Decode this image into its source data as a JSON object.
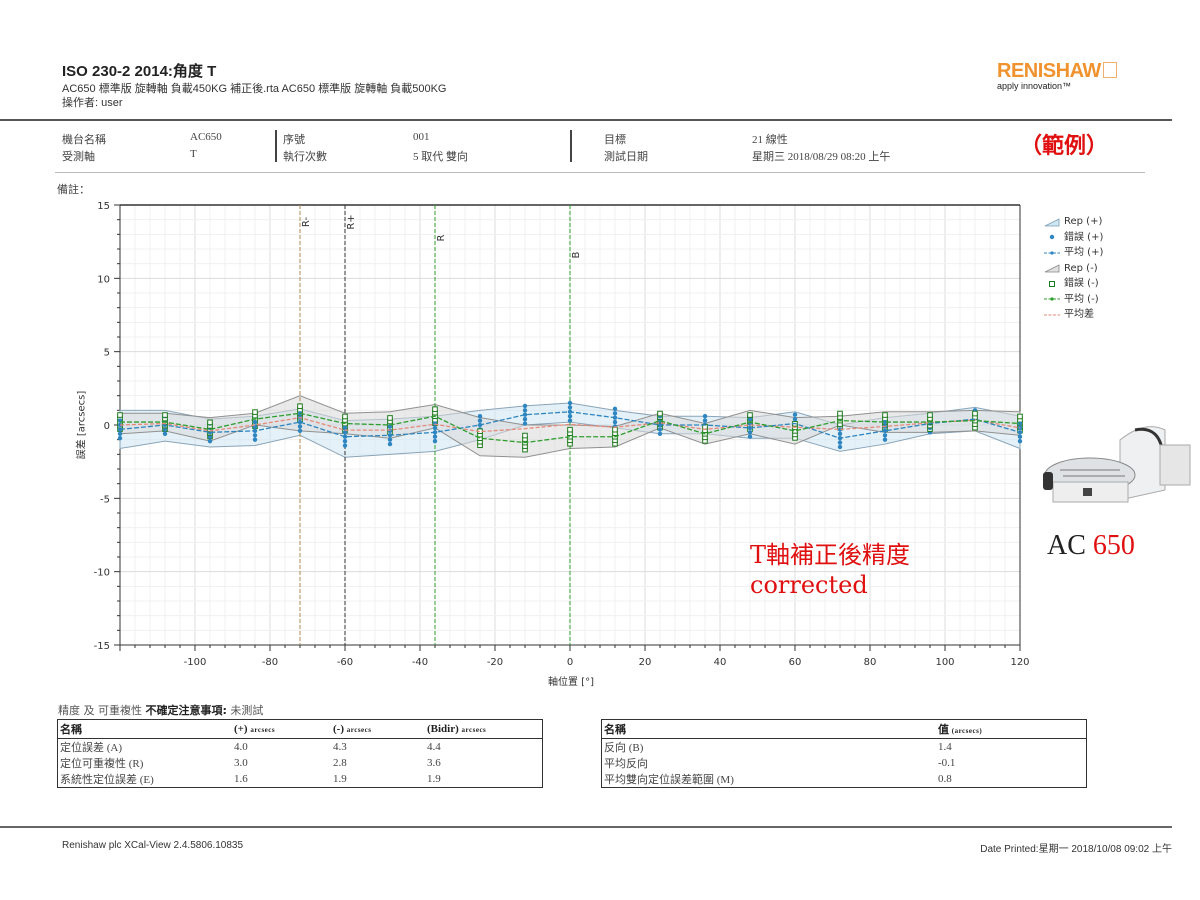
{
  "header": {
    "title": "ISO 230-2 2014:角度 T",
    "file_line": "AC650 標準版 旋轉軸 負載450KG 補正後.rta AC650 標準版 旋轉軸 負載500KG",
    "operator": "操作者: user",
    "logo": {
      "brand": "RENISHAW",
      "tagline": "apply innovation™",
      "brand_color": "#f0922e"
    }
  },
  "info": {
    "machine_label": "機台名稱",
    "machine_value": "AC650",
    "axis_label": "受測軸",
    "axis_value": "T",
    "serial_label": "序號",
    "serial_value": "001",
    "runs_label": "執行次數",
    "runs_value": "5 取代 雙向",
    "target_label": "目標",
    "target_value": "21 線性",
    "date_label": "測試日期",
    "date_value": "星期三 2018/08/29 08:20 上午",
    "example_mark": "（範例）",
    "notes_label": "備註："
  },
  "legend": [
    {
      "label": "Rep (+)",
      "icon": "band-icon"
    },
    {
      "label": "錯誤 (+)",
      "icon": "dot-icon"
    },
    {
      "label": "平均 (+)",
      "icon": "line-dot-icon"
    },
    {
      "label": "Rep (-)",
      "icon": "band-icon"
    },
    {
      "label": "錯誤 (-)",
      "icon": "square-icon"
    },
    {
      "label": "平均 (-)",
      "icon": "line-dot-icon"
    },
    {
      "label": "平均差",
      "icon": "line-icon"
    }
  ],
  "annotation": {
    "line1": "T軸補正後精度",
    "line2": "corrected"
  },
  "product": {
    "prefix": "AC ",
    "model": "650"
  },
  "chart_data": {
    "type": "line",
    "title": "",
    "xlabel": "軸位置 [°]",
    "ylabel": "誤差 [arcsecs]",
    "xlim": [
      -120,
      120
    ],
    "ylim": [
      -15,
      15
    ],
    "xticks": [
      -100,
      -80,
      -60,
      -40,
      -20,
      0,
      20,
      40,
      60,
      80,
      100,
      120
    ],
    "yticks": [
      15,
      10,
      5,
      0,
      -5,
      -10,
      -15
    ],
    "grid": true,
    "legend_position": "right",
    "x": [
      -120,
      -108,
      -96,
      -84,
      -72,
      -60,
      -48,
      -36,
      -24,
      -12,
      0,
      12,
      24,
      36,
      48,
      60,
      72,
      84,
      96,
      108,
      120
    ],
    "series": [
      {
        "name": "平均 (+)",
        "color": "#2e86c1",
        "values": [
          -0.3,
          0.0,
          -0.5,
          -0.4,
          0.2,
          -0.8,
          -0.7,
          -0.5,
          0.0,
          0.7,
          0.9,
          0.5,
          0.0,
          0.0,
          -0.2,
          0.1,
          -0.9,
          -0.4,
          0.1,
          0.4,
          -0.5
        ]
      },
      {
        "name": "平均 (-)",
        "color": "#2e9e2e",
        "values": [
          0.2,
          0.2,
          -0.3,
          0.4,
          0.8,
          0.1,
          0.0,
          0.6,
          -0.9,
          -1.2,
          -0.8,
          -0.8,
          0.3,
          -0.6,
          0.2,
          -0.4,
          0.3,
          0.2,
          0.2,
          0.3,
          0.1
        ]
      },
      {
        "name": "平均差",
        "color": "#e88a7a",
        "values": [
          0.0,
          0.1,
          -0.4,
          0.0,
          0.5,
          -0.35,
          -0.35,
          0.05,
          -0.45,
          -0.25,
          0.05,
          -0.15,
          0.15,
          -0.3,
          0.0,
          -0.15,
          -0.3,
          -0.1,
          0.15,
          0.35,
          -0.2
        ]
      },
      {
        "name": "Rep (+) upper",
        "values": [
          1.0,
          1.0,
          0.4,
          0.6,
          1.1,
          0.3,
          0.4,
          0.6,
          1.0,
          1.3,
          1.5,
          1.0,
          0.6,
          0.6,
          0.5,
          0.9,
          0.0,
          0.5,
          0.8,
          1.2,
          0.6
        ]
      },
      {
        "name": "Rep (+) lower",
        "values": [
          -1.6,
          -1.1,
          -1.5,
          -1.4,
          -0.7,
          -2.2,
          -2.0,
          -1.8,
          -1.0,
          0.0,
          0.2,
          -0.2,
          -0.6,
          -0.6,
          -0.9,
          -0.9,
          -1.8,
          -1.3,
          -0.6,
          -0.4,
          -1.6
        ]
      },
      {
        "name": "Rep (-) upper",
        "values": [
          0.8,
          0.8,
          0.5,
          0.8,
          2.0,
          0.8,
          0.9,
          1.4,
          0.5,
          0.0,
          0.0,
          -0.1,
          0.8,
          0.1,
          1.0,
          0.5,
          0.6,
          0.9,
          0.9,
          1.0,
          0.9
        ]
      },
      {
        "name": "Rep (-) lower",
        "values": [
          -0.6,
          -0.4,
          -1.1,
          0.0,
          -0.4,
          -0.6,
          -0.9,
          -0.2,
          -2.1,
          -2.2,
          -1.6,
          -1.5,
          -0.2,
          -1.3,
          -0.6,
          -1.3,
          0.0,
          -0.5,
          -0.5,
          -0.4,
          -0.7
        ]
      }
    ],
    "reference_lines": [
      {
        "label": "R-",
        "x": -72,
        "color": "#b08a50"
      },
      {
        "label": "R+",
        "x": -60,
        "color": "#333333"
      },
      {
        "label": "R",
        "x": -36,
        "color": "#2e9e2e"
      },
      {
        "label": "B",
        "x": 0,
        "color": "#2e9e2e"
      }
    ]
  },
  "results_left": {
    "caption_prefix": "精度 及 可重複性",
    "caption_bold": "不確定注意事項:",
    "caption_suffix": "未測試",
    "headers": [
      "名稱",
      "(+)",
      "(-)",
      "(Bidir)"
    ],
    "unit": "arcsecs",
    "rows": [
      [
        "定位誤差 (A)",
        "4.0",
        "4.3",
        "4.4"
      ],
      [
        "定位可重複性 (R)",
        "3.0",
        "2.8",
        "3.6"
      ],
      [
        "系統性定位誤差 (E)",
        "1.6",
        "1.9",
        "1.9"
      ]
    ]
  },
  "results_right": {
    "headers": [
      "名稱",
      "值"
    ],
    "unit": "(arcsecs)",
    "rows": [
      [
        "反向 (B)",
        "1.4"
      ],
      [
        "平均反向",
        "-0.1"
      ],
      [
        "平均雙向定位誤差範圍 (M)",
        "0.8"
      ]
    ]
  },
  "footer": {
    "software": "Renishaw plc XCal-View 2.4.5806.10835",
    "printed": "Date Printed:星期一 2018/10/08 09:02 上午"
  }
}
